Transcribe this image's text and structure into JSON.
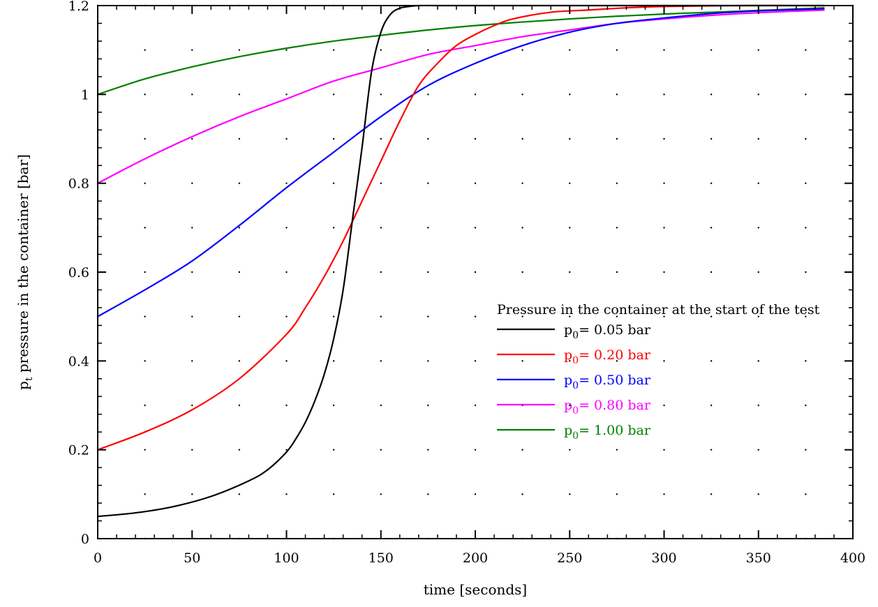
{
  "chart_data": {
    "type": "line",
    "xlabel": "time [seconds]",
    "ylabel": {
      "p": "p",
      "sub": "t",
      "rest": " pressure in the container [bar]"
    },
    "xlim": [
      0,
      400
    ],
    "ylim": [
      0,
      1.2
    ],
    "xticks": [
      0,
      50,
      100,
      150,
      200,
      250,
      300,
      350,
      400
    ],
    "yticks": [
      0,
      0.2,
      0.4,
      0.6,
      0.8,
      1,
      1.2
    ],
    "xtick_labels": [
      "0",
      "50",
      "100",
      "150",
      "200",
      "250",
      "300",
      "350",
      "400"
    ],
    "ytick_labels": [
      "0",
      "0.2",
      "0.4",
      "0.6",
      "0.8",
      "1",
      "1.2"
    ],
    "grid": "dotted",
    "legend": {
      "title": "Pressure in the container at the start of the test",
      "placement": "center-right"
    },
    "series": [
      {
        "label": {
          "p": "p",
          "sub": "0",
          "rest": "= 0.05 bar"
        },
        "color": "#000000",
        "x": [
          0,
          20,
          40,
          60,
          80,
          90,
          100,
          105,
          110,
          115,
          120,
          125,
          130,
          135,
          140,
          145,
          150,
          155,
          160,
          165,
          170,
          180,
          200,
          250,
          300,
          350,
          385
        ],
        "y": [
          0.05,
          0.058,
          0.072,
          0.095,
          0.13,
          0.155,
          0.195,
          0.225,
          0.262,
          0.31,
          0.37,
          0.45,
          0.56,
          0.72,
          0.88,
          1.05,
          1.14,
          1.18,
          1.194,
          1.198,
          1.2,
          1.2,
          1.2,
          1.2,
          1.2,
          1.2,
          1.2
        ]
      },
      {
        "label": {
          "p": "p",
          "sub": "0",
          "rest": "= 0.20 bar"
        },
        "color": "#ff0000",
        "x": [
          0,
          25,
          50,
          75,
          100,
          110,
          120,
          130,
          140,
          150,
          160,
          170,
          180,
          190,
          200,
          210,
          220,
          240,
          260,
          280,
          300,
          340,
          385
        ],
        "y": [
          0.2,
          0.24,
          0.29,
          0.36,
          0.46,
          0.52,
          0.59,
          0.67,
          0.76,
          0.85,
          0.94,
          1.02,
          1.07,
          1.11,
          1.135,
          1.155,
          1.17,
          1.185,
          1.19,
          1.195,
          1.198,
          1.2,
          1.2
        ]
      },
      {
        "label": {
          "p": "p",
          "sub": "0",
          "rest": "= 0.50 bar"
        },
        "color": "#0000ff",
        "x": [
          0,
          25,
          50,
          75,
          100,
          125,
          150,
          175,
          200,
          225,
          250,
          275,
          300,
          325,
          350,
          385
        ],
        "y": [
          0.5,
          0.56,
          0.625,
          0.705,
          0.79,
          0.87,
          0.95,
          1.02,
          1.07,
          1.11,
          1.14,
          1.16,
          1.172,
          1.182,
          1.188,
          1.193
        ]
      },
      {
        "label": {
          "p": "p",
          "sub": "0",
          "rest": "= 0.80 bar"
        },
        "color": "#ff00ff",
        "x": [
          0,
          25,
          50,
          75,
          100,
          125,
          150,
          175,
          200,
          225,
          250,
          275,
          300,
          325,
          350,
          385
        ],
        "y": [
          0.8,
          0.855,
          0.905,
          0.95,
          0.99,
          1.03,
          1.06,
          1.09,
          1.11,
          1.13,
          1.145,
          1.16,
          1.17,
          1.178,
          1.184,
          1.19
        ]
      },
      {
        "label": {
          "p": "p",
          "sub": "0",
          "rest": "= 1.00 bar"
        },
        "color": "#008000",
        "x": [
          0,
          25,
          50,
          75,
          100,
          125,
          150,
          175,
          200,
          225,
          250,
          275,
          300,
          325,
          350,
          385
        ],
        "y": [
          1.0,
          1.035,
          1.062,
          1.085,
          1.104,
          1.12,
          1.133,
          1.145,
          1.155,
          1.163,
          1.17,
          1.176,
          1.181,
          1.185,
          1.189,
          1.195
        ]
      }
    ]
  }
}
